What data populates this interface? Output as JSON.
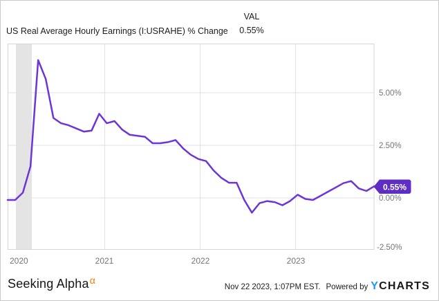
{
  "header": {
    "title": "US Real Average Hourly Earnings (I:USRAHE) % Change",
    "val_label": "VAL",
    "val_value": "0.55%"
  },
  "badge": {
    "label": "0.55%",
    "color": "#5e2ec4"
  },
  "footer": {
    "brand": "Seeking Alpha",
    "brand_alpha": "α",
    "timestamp": "Nov 22 2023, 1:07PM EST.",
    "powered_by": "Powered by",
    "ycharts_y": "Y",
    "ycharts_rest": "CHARTS"
  },
  "chart_data": {
    "type": "line",
    "title": "US Real Average Hourly Earnings (I:USRAHE) % Change",
    "x": [
      "2019-11",
      "2019-12",
      "2020-01",
      "2020-02",
      "2020-03",
      "2020-04",
      "2020-05",
      "2020-06",
      "2020-07",
      "2020-08",
      "2020-09",
      "2020-10",
      "2020-11",
      "2020-12",
      "2021-01",
      "2021-02",
      "2021-03",
      "2021-04",
      "2021-05",
      "2021-06",
      "2021-07",
      "2021-08",
      "2021-09",
      "2021-10",
      "2021-11",
      "2021-12",
      "2022-01",
      "2022-02",
      "2022-03",
      "2022-04",
      "2022-05",
      "2022-06",
      "2022-07",
      "2022-08",
      "2022-09",
      "2022-10",
      "2022-11",
      "2022-12",
      "2023-01",
      "2023-02",
      "2023-03",
      "2023-04",
      "2023-05",
      "2023-06",
      "2023-07",
      "2023-08",
      "2023-09",
      "2023-10",
      "2023-11"
    ],
    "series": [
      {
        "name": "US Real Average Hourly Earnings (I:USRAHE) % Change",
        "values": [
          -0.1,
          -0.1,
          0.25,
          1.5,
          6.55,
          5.65,
          3.8,
          3.55,
          3.45,
          3.3,
          3.15,
          3.2,
          4.0,
          3.55,
          3.65,
          3.25,
          3.0,
          2.95,
          2.9,
          2.6,
          2.6,
          2.65,
          2.75,
          2.35,
          2.05,
          1.85,
          1.75,
          1.3,
          0.95,
          0.72,
          0.72,
          -0.1,
          -0.7,
          -0.25,
          -0.15,
          -0.2,
          -0.35,
          -0.15,
          0.15,
          -0.05,
          -0.1,
          0.1,
          0.3,
          0.5,
          0.7,
          0.8,
          0.45,
          0.33,
          0.55
        ]
      }
    ],
    "last_value": 0.55,
    "ylabel": "% Change",
    "ylim": [
      -2.5,
      7.35
    ],
    "y_ticks": [
      5.0,
      2.5,
      0.0,
      -2.5
    ],
    "y_tick_labels": [
      "5.00%",
      "2.50%",
      "0.00%",
      "-2.50%"
    ],
    "x_tick_labels": [
      "2020",
      "2021",
      "2022",
      "2023"
    ],
    "grid": true,
    "legend_position": "none",
    "line_color": "#6b35d8",
    "band_color": "#e4e4e4",
    "recession_band": {
      "start": "2020-02",
      "end": "2020-04"
    }
  }
}
